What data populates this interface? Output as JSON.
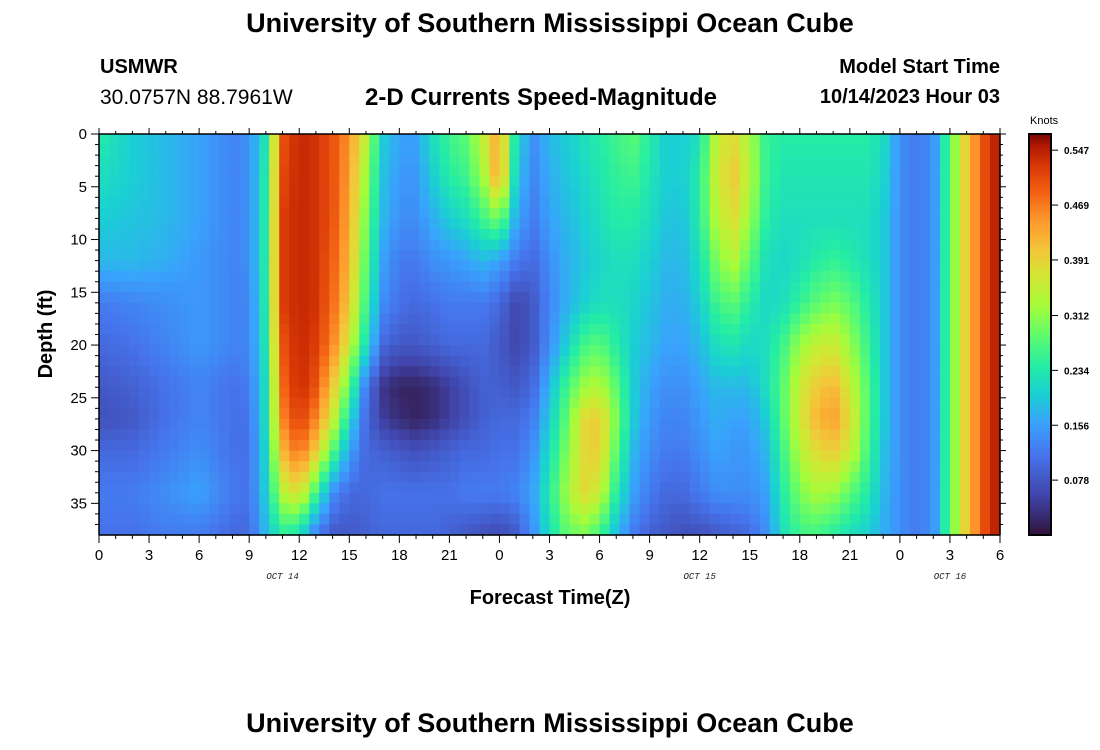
{
  "header": {
    "title": "University of Southern Mississippi Ocean Cube",
    "station": "USMWR",
    "coords": "30.0757N  88.7961W",
    "subtitle": "2-D Currents Speed-Magnitude",
    "model_start_label": "Model Start Time",
    "model_start_value": "10/14/2023 Hour 03"
  },
  "footer": {
    "title": "University of Southern Mississippi Ocean Cube"
  },
  "chart_data": {
    "type": "heatmap",
    "title": "2-D Currents Speed-Magnitude",
    "xlabel": "Forecast Time(Z)",
    "ylabel": "Depth (ft)",
    "x_ticks": [
      "0",
      "3",
      "6",
      "9",
      "12",
      "15",
      "18",
      "21",
      "0",
      "3",
      "6",
      "9",
      "12",
      "15",
      "18",
      "21",
      "0",
      "3",
      "6"
    ],
    "x_range_hours": [
      0,
      54
    ],
    "date_labels": [
      {
        "text": "OCT 14",
        "hour": 11
      },
      {
        "text": "OCT 15",
        "hour": 36
      },
      {
        "text": "OCT 16",
        "hour": 51
      }
    ],
    "y_ticks": [
      0,
      5,
      10,
      15,
      20,
      25,
      30,
      35
    ],
    "ylim": [
      0,
      38
    ],
    "y_inverted": true,
    "colorbar": {
      "title": "Knots",
      "ticks": [
        0.547,
        0.469,
        0.391,
        0.312,
        0.234,
        0.156,
        0.078
      ],
      "range": [
        0,
        0.57
      ]
    },
    "depth_rows": [
      0,
      4,
      8,
      12,
      16,
      20,
      24,
      27,
      30,
      34,
      38
    ],
    "time_hours": [
      0,
      2,
      4,
      6,
      8,
      9,
      10,
      11,
      12,
      13,
      14,
      15,
      16,
      17,
      18,
      19,
      20,
      21,
      22,
      23,
      24,
      25,
      26,
      27,
      28,
      29,
      30,
      31,
      32,
      33,
      34,
      35,
      36,
      37,
      38,
      39,
      40,
      41,
      42,
      43,
      44,
      45,
      46,
      47,
      48,
      49,
      50,
      51,
      52,
      53,
      54
    ],
    "values_knots": [
      [
        0.24,
        0.2,
        0.18,
        0.16,
        0.13,
        0.14,
        0.23,
        0.5,
        0.54,
        0.53,
        0.5,
        0.45,
        0.35,
        0.2,
        0.16,
        0.16,
        0.22,
        0.26,
        0.28,
        0.35,
        0.44,
        0.22,
        0.14,
        0.18,
        0.2,
        0.22,
        0.24,
        0.26,
        0.28,
        0.24,
        0.2,
        0.2,
        0.22,
        0.35,
        0.38,
        0.33,
        0.25,
        0.24,
        0.24,
        0.24,
        0.24,
        0.24,
        0.24,
        0.22,
        0.14,
        0.12,
        0.14,
        0.28,
        0.4,
        0.5,
        0.56
      ],
      [
        0.22,
        0.2,
        0.18,
        0.16,
        0.13,
        0.14,
        0.24,
        0.51,
        0.54,
        0.53,
        0.5,
        0.44,
        0.32,
        0.19,
        0.15,
        0.15,
        0.2,
        0.24,
        0.26,
        0.32,
        0.45,
        0.2,
        0.13,
        0.17,
        0.19,
        0.21,
        0.23,
        0.25,
        0.26,
        0.23,
        0.2,
        0.2,
        0.24,
        0.36,
        0.4,
        0.34,
        0.25,
        0.23,
        0.23,
        0.23,
        0.23,
        0.23,
        0.23,
        0.21,
        0.14,
        0.12,
        0.14,
        0.28,
        0.4,
        0.5,
        0.56
      ],
      [
        0.2,
        0.19,
        0.18,
        0.16,
        0.13,
        0.14,
        0.24,
        0.52,
        0.54,
        0.53,
        0.5,
        0.43,
        0.3,
        0.18,
        0.14,
        0.14,
        0.17,
        0.2,
        0.22,
        0.26,
        0.3,
        0.17,
        0.12,
        0.16,
        0.18,
        0.2,
        0.22,
        0.24,
        0.24,
        0.22,
        0.19,
        0.19,
        0.24,
        0.34,
        0.38,
        0.32,
        0.24,
        0.22,
        0.22,
        0.22,
        0.22,
        0.22,
        0.22,
        0.2,
        0.14,
        0.12,
        0.14,
        0.28,
        0.4,
        0.5,
        0.56
      ],
      [
        0.18,
        0.18,
        0.17,
        0.15,
        0.13,
        0.14,
        0.24,
        0.52,
        0.54,
        0.53,
        0.49,
        0.42,
        0.28,
        0.16,
        0.12,
        0.12,
        0.14,
        0.15,
        0.16,
        0.18,
        0.16,
        0.12,
        0.1,
        0.14,
        0.17,
        0.19,
        0.21,
        0.22,
        0.22,
        0.2,
        0.18,
        0.18,
        0.22,
        0.3,
        0.34,
        0.28,
        0.22,
        0.21,
        0.22,
        0.24,
        0.25,
        0.24,
        0.22,
        0.2,
        0.14,
        0.12,
        0.14,
        0.28,
        0.4,
        0.5,
        0.56
      ],
      [
        0.12,
        0.13,
        0.14,
        0.15,
        0.13,
        0.13,
        0.24,
        0.52,
        0.54,
        0.53,
        0.48,
        0.4,
        0.26,
        0.14,
        0.11,
        0.1,
        0.11,
        0.12,
        0.12,
        0.12,
        0.1,
        0.06,
        0.08,
        0.13,
        0.17,
        0.2,
        0.22,
        0.22,
        0.21,
        0.19,
        0.17,
        0.17,
        0.2,
        0.26,
        0.28,
        0.24,
        0.21,
        0.22,
        0.25,
        0.28,
        0.3,
        0.28,
        0.24,
        0.2,
        0.14,
        0.12,
        0.14,
        0.28,
        0.4,
        0.5,
        0.56
      ],
      [
        0.1,
        0.11,
        0.13,
        0.15,
        0.13,
        0.13,
        0.23,
        0.5,
        0.54,
        0.52,
        0.46,
        0.36,
        0.22,
        0.1,
        0.08,
        0.08,
        0.09,
        0.1,
        0.1,
        0.1,
        0.08,
        0.06,
        0.08,
        0.14,
        0.2,
        0.26,
        0.28,
        0.24,
        0.2,
        0.18,
        0.16,
        0.16,
        0.18,
        0.22,
        0.23,
        0.21,
        0.22,
        0.26,
        0.32,
        0.35,
        0.36,
        0.32,
        0.26,
        0.2,
        0.14,
        0.12,
        0.14,
        0.28,
        0.4,
        0.5,
        0.56
      ],
      [
        0.08,
        0.09,
        0.11,
        0.13,
        0.11,
        0.12,
        0.22,
        0.48,
        0.54,
        0.5,
        0.4,
        0.28,
        0.12,
        0.04,
        0.02,
        0.02,
        0.03,
        0.05,
        0.07,
        0.09,
        0.09,
        0.08,
        0.1,
        0.18,
        0.26,
        0.32,
        0.34,
        0.28,
        0.2,
        0.16,
        0.14,
        0.14,
        0.16,
        0.18,
        0.18,
        0.18,
        0.22,
        0.28,
        0.36,
        0.4,
        0.42,
        0.36,
        0.28,
        0.2,
        0.14,
        0.12,
        0.14,
        0.28,
        0.4,
        0.5,
        0.56
      ],
      [
        0.07,
        0.08,
        0.11,
        0.13,
        0.11,
        0.11,
        0.22,
        0.46,
        0.52,
        0.46,
        0.36,
        0.22,
        0.1,
        0.05,
        0.03,
        0.02,
        0.03,
        0.05,
        0.07,
        0.09,
        0.1,
        0.1,
        0.12,
        0.2,
        0.28,
        0.38,
        0.4,
        0.3,
        0.2,
        0.15,
        0.13,
        0.13,
        0.15,
        0.17,
        0.16,
        0.16,
        0.2,
        0.28,
        0.36,
        0.42,
        0.44,
        0.38,
        0.28,
        0.2,
        0.14,
        0.12,
        0.14,
        0.28,
        0.4,
        0.5,
        0.56
      ],
      [
        0.1,
        0.1,
        0.12,
        0.14,
        0.11,
        0.11,
        0.21,
        0.42,
        0.48,
        0.4,
        0.28,
        0.16,
        0.1,
        0.09,
        0.08,
        0.07,
        0.08,
        0.09,
        0.1,
        0.1,
        0.11,
        0.11,
        0.14,
        0.22,
        0.3,
        0.38,
        0.4,
        0.28,
        0.18,
        0.14,
        0.12,
        0.12,
        0.14,
        0.16,
        0.15,
        0.15,
        0.18,
        0.26,
        0.34,
        0.38,
        0.4,
        0.36,
        0.27,
        0.19,
        0.14,
        0.12,
        0.14,
        0.28,
        0.4,
        0.5,
        0.56
      ],
      [
        0.12,
        0.12,
        0.14,
        0.16,
        0.12,
        0.11,
        0.2,
        0.34,
        0.38,
        0.26,
        0.14,
        0.1,
        0.1,
        0.11,
        0.11,
        0.11,
        0.11,
        0.11,
        0.12,
        0.12,
        0.12,
        0.13,
        0.16,
        0.24,
        0.32,
        0.38,
        0.36,
        0.24,
        0.16,
        0.12,
        0.1,
        0.1,
        0.12,
        0.14,
        0.14,
        0.14,
        0.16,
        0.24,
        0.3,
        0.33,
        0.32,
        0.28,
        0.24,
        0.18,
        0.14,
        0.12,
        0.14,
        0.28,
        0.4,
        0.5,
        0.56
      ],
      [
        0.11,
        0.11,
        0.12,
        0.12,
        0.1,
        0.1,
        0.18,
        0.24,
        0.22,
        0.12,
        0.08,
        0.08,
        0.09,
        0.1,
        0.1,
        0.1,
        0.1,
        0.09,
        0.08,
        0.07,
        0.06,
        0.08,
        0.14,
        0.22,
        0.28,
        0.3,
        0.26,
        0.18,
        0.12,
        0.09,
        0.08,
        0.07,
        0.07,
        0.08,
        0.09,
        0.1,
        0.14,
        0.22,
        0.26,
        0.26,
        0.24,
        0.22,
        0.2,
        0.17,
        0.14,
        0.12,
        0.14,
        0.28,
        0.4,
        0.5,
        0.56
      ]
    ]
  }
}
